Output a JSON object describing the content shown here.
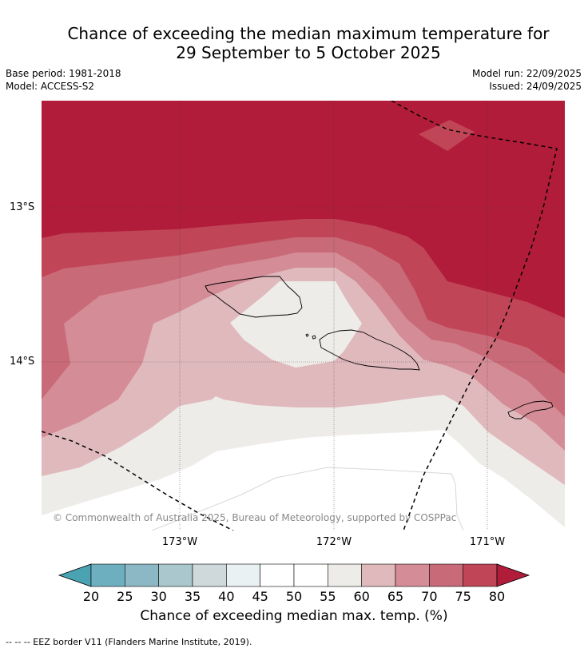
{
  "title_line1": "Chance of exceeding the median maximum temperature for",
  "title_line2": "29 September to 5 October 2025",
  "base_period": "Base period: 1981-2018",
  "model": "Model: ACCESS-S2",
  "model_run": "Model run: 22/09/2025",
  "issued": "Issued: 24/09/2025",
  "copyright": "© Commonwealth of Australia 2025, Bureau of Meteorology, supported by COSPPac",
  "lat_labels": [
    "13°S",
    "14°S"
  ],
  "lon_labels": [
    "173°W",
    "172°W",
    "171°W"
  ],
  "colorbar": {
    "label": "Chance of exceeding median max. temp. (%)",
    "ticks": [
      "20",
      "25",
      "30",
      "35",
      "40",
      "45",
      "50",
      "55",
      "60",
      "65",
      "70",
      "75",
      "80"
    ],
    "colors": [
      "#4aa3b2",
      "#6eafbf",
      "#8bb8c4",
      "#a9c7cc",
      "#cfd8da",
      "#eaf1f2",
      "#ffffff",
      "#ffffff",
      "#eeece9",
      "#e0b9bd",
      "#d48c96",
      "#c96a78",
      "#c04657",
      "#b11c3a"
    ]
  },
  "footnote": "--  --  -- EEZ border V11 (Flanders Marine Institute, 2019)."
}
